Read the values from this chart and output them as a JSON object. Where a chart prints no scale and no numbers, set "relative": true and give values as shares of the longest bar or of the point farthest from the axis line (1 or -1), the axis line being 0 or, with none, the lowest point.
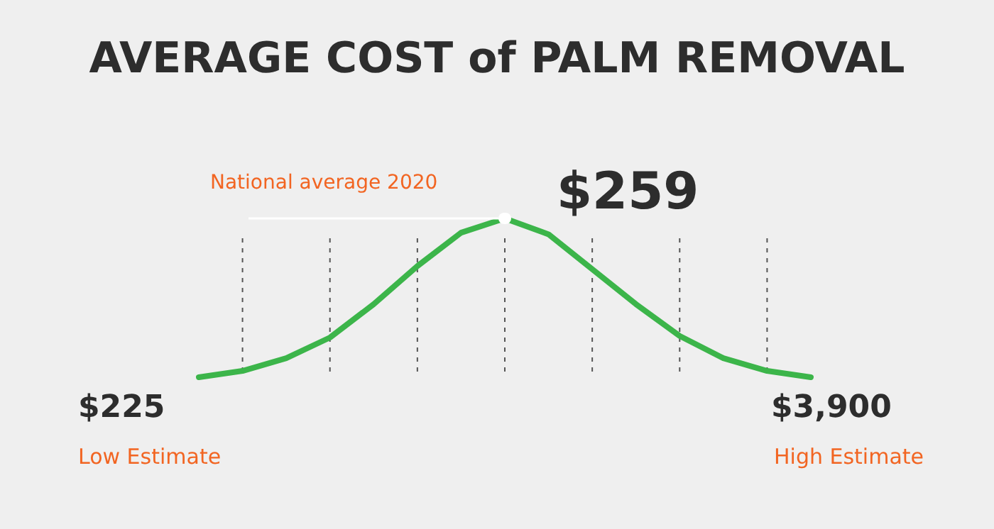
{
  "chart_data": {
    "type": "line",
    "title": "AVERAGE COST of PALM REMOVAL",
    "relative": true,
    "categories": [
      null,
      null,
      null,
      null,
      null,
      null,
      null,
      null,
      null,
      null,
      null,
      null,
      null,
      null,
      null
    ],
    "series": [
      {
        "color": "#3cb54a",
        "values": [
          0,
          0.04,
          0.12,
          0.25,
          0.46,
          0.7,
          0.91,
          1,
          0.9,
          0.68,
          0.46,
          0.26,
          0.12,
          0.04,
          0
        ]
      }
    ],
    "ref_lines": [
      {
        "axis": "y",
        "value": 1,
        "label": "National average 2020",
        "color": "#ffffff"
      }
    ],
    "grid": "x",
    "marker": "none",
    "line_style": "solid",
    "annotations": [
      "$259",
      "$225",
      "Low Estimate",
      "$3,900",
      "High Estimate"
    ]
  }
}
